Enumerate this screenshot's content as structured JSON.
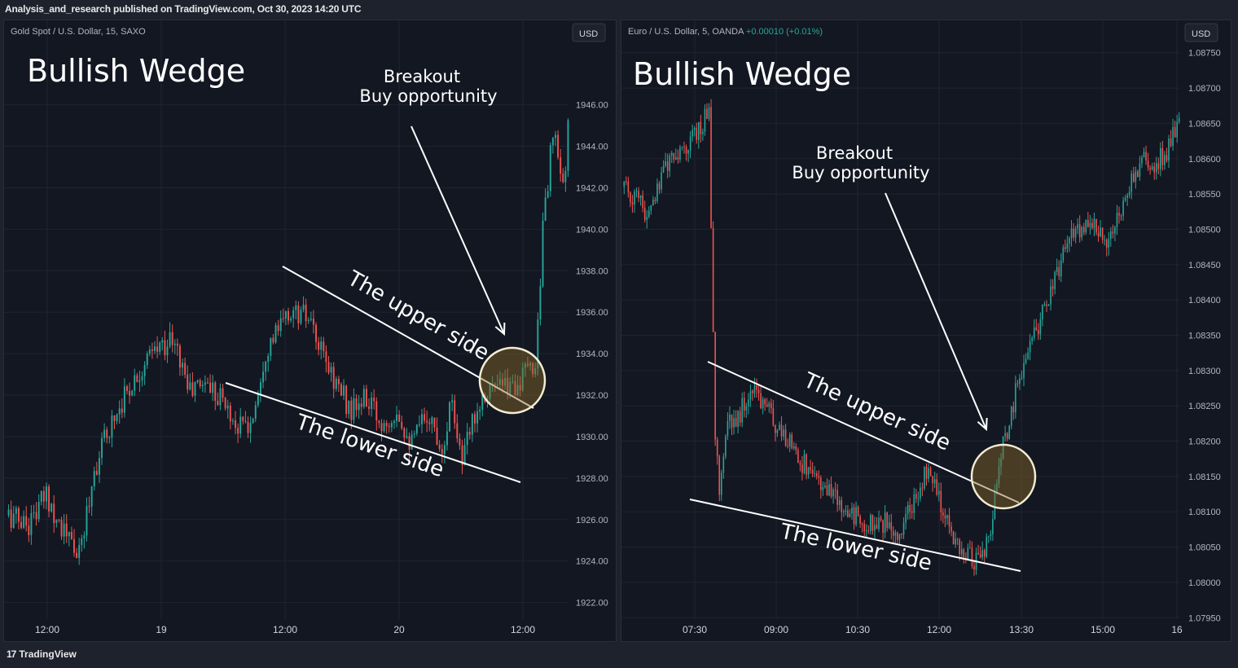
{
  "header": {
    "published_text": "Analysis_and_research published on TradingView.com, Oct 30, 2023 14:20 UTC"
  },
  "footer": {
    "brand": "TradingView",
    "logo_glyph": "17"
  },
  "colors": {
    "up": "#26a69a",
    "down": "#ef5350",
    "background": "#131722",
    "grid": "#1f2431",
    "annotation": "#ffffff",
    "highlight": "#8a6a2a"
  },
  "chart_data": [
    {
      "type": "candlestick",
      "symbol_text": "Gold Spot / U.S. Dollar, 15, SAXO",
      "change_text": "",
      "currency": "USD",
      "title": "Bullish Wedge",
      "annotations": {
        "breakout": [
          "Breakout",
          "Buy opportunity"
        ],
        "upper": "The upper side",
        "lower": "The lower side"
      },
      "y_ticks": [
        "1946.00",
        "1944.00",
        "1942.00",
        "1940.00",
        "1938.00",
        "1936.00",
        "1934.00",
        "1932.00",
        "1930.00",
        "1928.00",
        "1926.00",
        "1924.00",
        "1922.00"
      ],
      "x_ticks": [
        "12:00",
        "19",
        "12:00",
        "20",
        "12:00"
      ],
      "ylim": [
        1921.2,
        1948.5
      ],
      "n_candles": 190,
      "anchors": [
        [
          0,
          1926.2
        ],
        [
          8,
          1925.8
        ],
        [
          15,
          1927.2
        ],
        [
          22,
          1925.4
        ],
        [
          28,
          1924.2
        ],
        [
          34,
          1928.4
        ],
        [
          40,
          1930.5
        ],
        [
          46,
          1932.0
        ],
        [
          52,
          1933.2
        ],
        [
          58,
          1934.1
        ],
        [
          64,
          1934.7
        ],
        [
          68,
          1933.8
        ],
        [
          72,
          1932.2
        ],
        [
          78,
          1932.7
        ],
        [
          84,
          1932.0
        ],
        [
          90,
          1930.6
        ],
        [
          96,
          1930.5
        ],
        [
          102,
          1934.2
        ],
        [
          108,
          1935.3
        ],
        [
          112,
          1936.0
        ],
        [
          118,
          1935.8
        ],
        [
          124,
          1934.0
        ],
        [
          130,
          1932.6
        ],
        [
          136,
          1931.2
        ],
        [
          142,
          1931.8
        ],
        [
          148,
          1930.6
        ],
        [
          154,
          1931.4
        ],
        [
          160,
          1929.6
        ],
        [
          166,
          1931.2
        ],
        [
          172,
          1929.5
        ],
        [
          176,
          1931.9
        ],
        [
          180,
          1928.7
        ],
        [
          185,
          1931.2
        ],
        [
          190,
          1932.4
        ],
        [
          196,
          1932.3
        ],
        [
          203,
          1932.7
        ],
        [
          209,
          1933.5
        ],
        [
          212,
          1940.0
        ],
        [
          216,
          1944.6
        ],
        [
          220,
          1942.0
        ],
        [
          222,
          1944.8
        ]
      ],
      "breakout": {
        "start": 212,
        "end": 222
      }
    },
    {
      "type": "candlestick",
      "symbol_text": "Euro / U.S. Dollar, 5, OANDA",
      "change_text": "+0.00010 (+0.01%)",
      "currency": "USD",
      "title": "Bullish Wedge",
      "annotations": {
        "breakout": [
          "Breakout",
          "Buy opportunity"
        ],
        "upper": "The upper side",
        "lower": "The lower side"
      },
      "y_ticks": [
        "1.08750",
        "1.08700",
        "1.08650",
        "1.08600",
        "1.08550",
        "1.08500",
        "1.08450",
        "1.08400",
        "1.08350",
        "1.08300",
        "1.08250",
        "1.08200",
        "1.08150",
        "1.08100",
        "1.08050",
        "1.08000",
        "1.07950"
      ],
      "x_ticks": [
        "07:30",
        "09:00",
        "10:30",
        "12:00",
        "13:30",
        "15:00",
        "16"
      ],
      "ylim": [
        1.07948,
        1.08752
      ],
      "n_candles": 230,
      "anchors": [
        [
          0,
          1.0856
        ],
        [
          6,
          1.0854
        ],
        [
          12,
          1.0852
        ],
        [
          18,
          1.0858
        ],
        [
          24,
          1.086
        ],
        [
          30,
          1.0862
        ],
        [
          36,
          1.0864
        ],
        [
          41,
          1.0867
        ],
        [
          44,
          1.082
        ],
        [
          46,
          1.0813
        ],
        [
          50,
          1.0822
        ],
        [
          56,
          1.0824
        ],
        [
          62,
          1.0828
        ],
        [
          68,
          1.0825
        ],
        [
          74,
          1.0822
        ],
        [
          80,
          1.082
        ],
        [
          86,
          1.0817
        ],
        [
          92,
          1.0815
        ],
        [
          98,
          1.0813
        ],
        [
          104,
          1.0811
        ],
        [
          110,
          1.081
        ],
        [
          116,
          1.0808
        ],
        [
          122,
          1.0809
        ],
        [
          128,
          1.0808
        ],
        [
          134,
          1.0807
        ],
        [
          140,
          1.0812
        ],
        [
          146,
          1.0816
        ],
        [
          152,
          1.0812
        ],
        [
          158,
          1.0806
        ],
        [
          164,
          1.0804
        ],
        [
          170,
          1.0803
        ],
        [
          176,
          1.0806
        ],
        [
          182,
          1.0818
        ],
        [
          186,
          1.0823
        ],
        [
          190,
          1.0828
        ],
        [
          196,
          1.0833
        ],
        [
          202,
          1.0838
        ],
        [
          208,
          1.0843
        ],
        [
          214,
          1.0848
        ],
        [
          220,
          1.085
        ],
        [
          226,
          1.0851
        ],
        [
          232,
          1.0848
        ],
        [
          238,
          1.0852
        ],
        [
          244,
          1.0856
        ],
        [
          250,
          1.086
        ],
        [
          256,
          1.0859
        ],
        [
          262,
          1.0861
        ],
        [
          268,
          1.0865
        ]
      ],
      "breakout": {
        "start": 182,
        "end": 268
      }
    }
  ]
}
